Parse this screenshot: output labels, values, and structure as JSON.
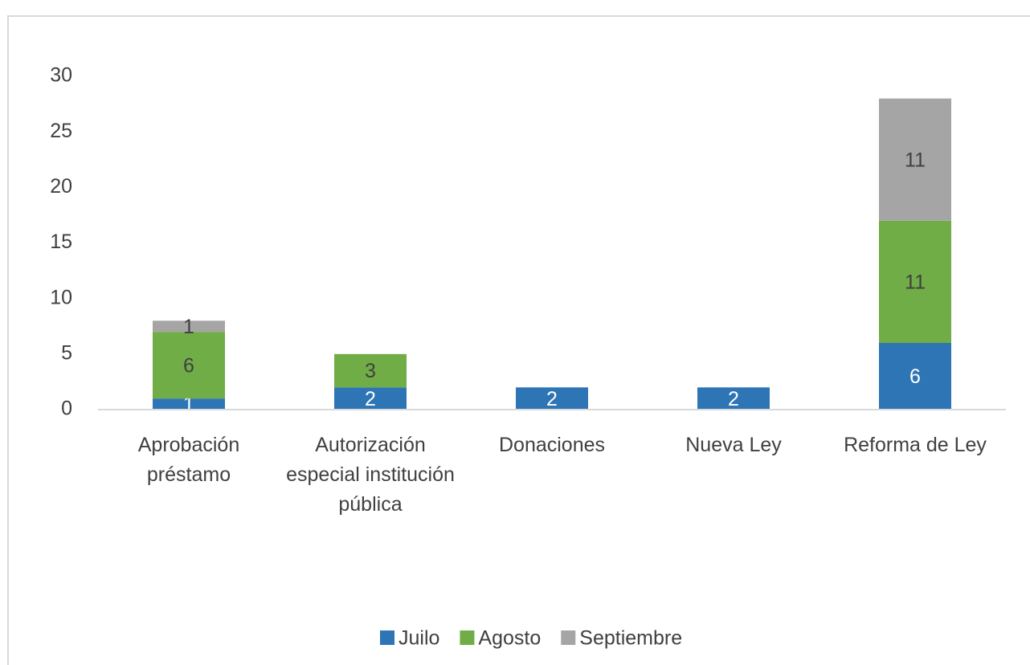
{
  "chart_data": {
    "type": "stacked_bar",
    "categories": [
      "Aprobación préstamo",
      "Autorización especial institución pública",
      "Donaciones",
      "Nueva Ley",
      "Reforma de Ley"
    ],
    "series": [
      {
        "name": "Juilo",
        "color": "#2e75b6",
        "values": [
          1,
          2,
          2,
          2,
          6
        ]
      },
      {
        "name": "Agosto",
        "color": "#70ad47",
        "values": [
          6,
          3,
          0,
          0,
          11
        ]
      },
      {
        "name": "Septiembre",
        "color": "#a5a5a5",
        "values": [
          1,
          0,
          0,
          0,
          11
        ]
      }
    ],
    "ylim": [
      0,
      30
    ],
    "yticks": [
      0,
      5,
      10,
      15,
      20,
      25,
      30
    ],
    "grid": false,
    "legend": "bottom"
  }
}
